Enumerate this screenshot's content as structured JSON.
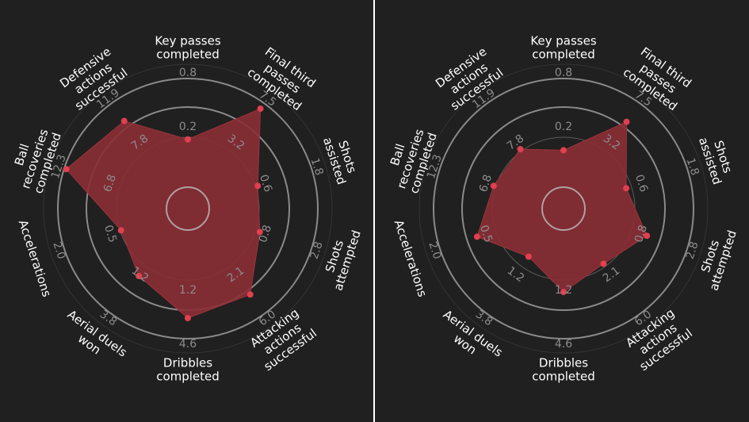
{
  "colors": {
    "background": "#202020",
    "divider": "#ffffff",
    "ring_outer": "#8a8a8a",
    "ring_mid": "#5a5a5a",
    "ring_inner": "#777777",
    "polygon_fill": "#8b2d35",
    "polygon_stroke": "#9a333c",
    "point": "#e0404f",
    "axis_label": "#ffffff",
    "tick_label": "#8c8c8c"
  },
  "chart_data": [
    {
      "type": "radar",
      "axes": [
        "Key passes\ncompleted",
        "Final third\npasses\ncompleted",
        "Shots\nassisted",
        "Shots\nattempted",
        "Attacking\nactions\nsuccessful",
        "Dribbles\ncompleted",
        "Aerial duels\nwon",
        "Accelerations",
        "Ball\nrecoveries\ncompleted",
        "Defensive\nactions\nsuccessful"
      ],
      "tick_labels": {
        "inner": [
          "0.2",
          "3.2",
          "0.6",
          "0.8",
          "2.1",
          "1.2",
          "1.2",
          "0.5",
          "6.8",
          "7.8"
        ],
        "outer": [
          "0.8",
          "7.5",
          "1.8",
          "2.8",
          "6.0",
          "4.6",
          "3.8",
          "2.0",
          "12.3",
          "11.9"
        ]
      },
      "values": [
        0.44,
        0.94,
        0.48,
        0.5,
        0.78,
        0.81,
        0.57,
        0.45,
        0.98,
        0.8
      ],
      "grid": true
    },
    {
      "type": "radar",
      "axes": [
        "Key passes\ncompleted",
        "Final third\npasses\ncompleted",
        "Shots\nassisted",
        "Shots\nattempted",
        "Attacking\nactions\nsuccessful",
        "Dribbles\ncompleted",
        "Aerial duels\nwon",
        "Accelerations",
        "Ball\nrecoveries\ncompleted",
        "Defensive\nactions\nsuccessful"
      ],
      "tick_labels": {
        "inner": [
          "0.2",
          "3.2",
          "0.6",
          "0.8",
          "2.1",
          "1.2",
          "1.2",
          "0.5",
          "6.8",
          "7.8"
        ],
        "outer": [
          "0.8",
          "7.5",
          "1.8",
          "2.8",
          "6.0",
          "4.6",
          "3.8",
          "2.0",
          "12.3",
          "11.9"
        ]
      },
      "values": [
        0.34,
        0.79,
        0.41,
        0.61,
        0.43,
        0.57,
        0.35,
        0.64,
        0.48,
        0.48
      ],
      "grid": true
    }
  ]
}
